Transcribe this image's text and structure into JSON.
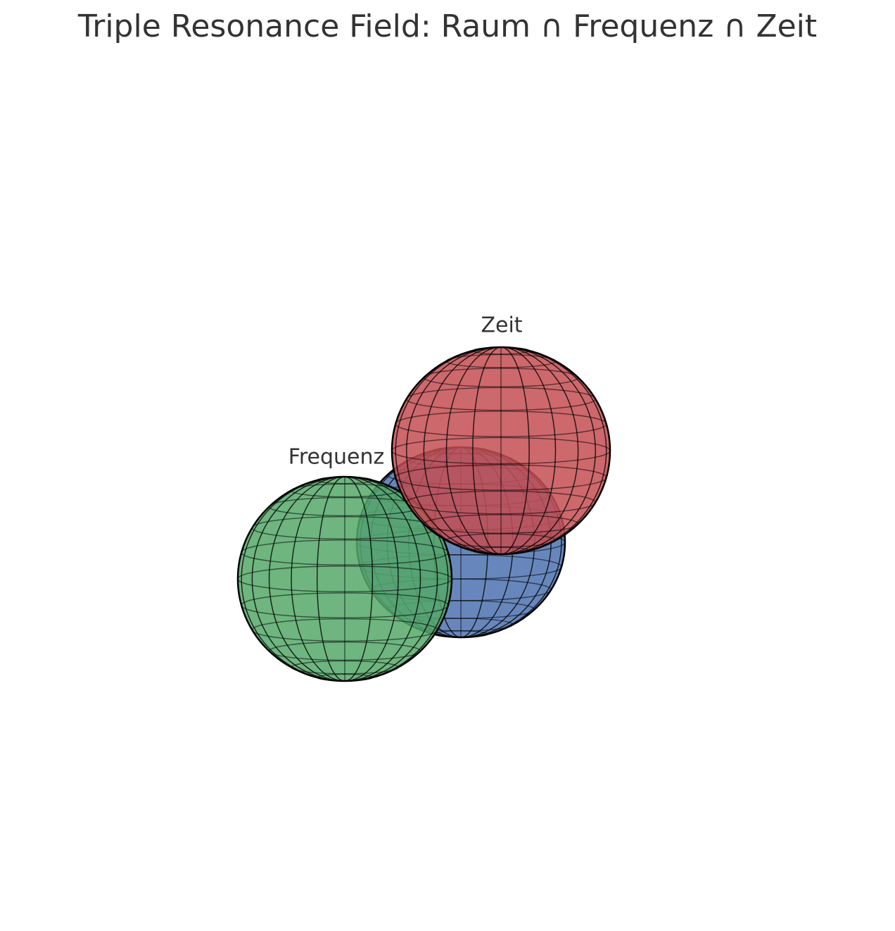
{
  "chart_data": {
    "type": "sphere3d",
    "title": "Triple Resonance Field: Raum ∩ Frequenz ∩ Zeit",
    "series": [
      {
        "name": "Frequenz",
        "color": "#55a868"
      },
      {
        "name": "Zeit",
        "color": "#c44e52"
      }
    ]
  }
}
